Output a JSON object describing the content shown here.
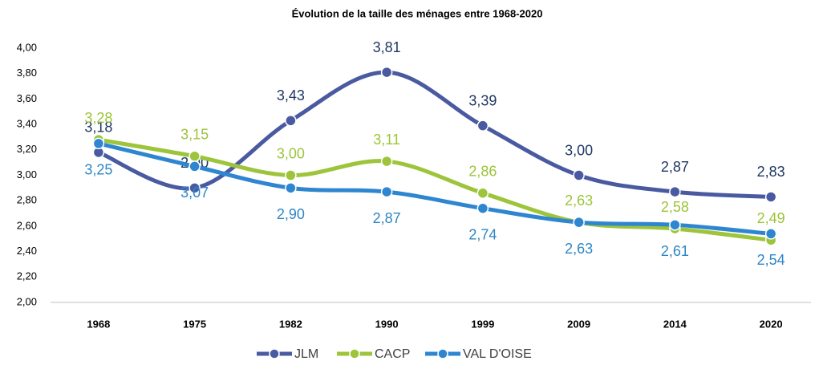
{
  "chart_data": {
    "type": "line",
    "title": "Évolution de la taille des ménages entre 1968-2020",
    "categories": [
      "1968",
      "1975",
      "1982",
      "1990",
      "1999",
      "2009",
      "2014",
      "2020"
    ],
    "series": [
      {
        "name": "JLM",
        "color": "#4a5aa0",
        "label_color": "#1f3864",
        "values": [
          3.18,
          2.9,
          3.43,
          3.81,
          3.39,
          3.0,
          2.87,
          2.83
        ],
        "value_labels": [
          "3,18",
          "2,90",
          "3,43",
          "3,81",
          "3,39",
          "3,00",
          "2,87",
          "2,83"
        ]
      },
      {
        "name": "CACP",
        "color": "#9dc43a",
        "label_color": "#9dc43a",
        "values": [
          3.28,
          3.15,
          3.0,
          3.11,
          2.86,
          2.63,
          2.58,
          2.49
        ],
        "value_labels": [
          "3,28",
          "3,15",
          "3,00",
          "3,11",
          "2,86",
          "2,63",
          "2,58",
          "2,49"
        ]
      },
      {
        "name": "VAL D'OISE",
        "color": "#2f86d0",
        "label_color": "#2f86c6",
        "values": [
          3.25,
          3.07,
          2.9,
          2.87,
          2.74,
          2.63,
          2.61,
          2.54
        ],
        "value_labels": [
          "3,25",
          "3,07",
          "2,90",
          "2,87",
          "2,74",
          "2,63",
          "2,61",
          "2,54"
        ]
      }
    ],
    "ylim": [
      2,
      4
    ],
    "yticks": [
      {
        "value": 2,
        "label": "2,00"
      },
      {
        "value": 2.2,
        "label": "2,20"
      },
      {
        "value": 2.4,
        "label": "2,40"
      },
      {
        "value": 2.6,
        "label": "2,60"
      },
      {
        "value": 2.8,
        "label": "2,80"
      },
      {
        "value": 3,
        "label": "3,00"
      },
      {
        "value": 3.2,
        "label": "3,20"
      },
      {
        "value": 3.4,
        "label": "3,40"
      },
      {
        "value": 3.6,
        "label": "3,60"
      },
      {
        "value": 3.8,
        "label": "3,80"
      },
      {
        "value": 4,
        "label": "4,00"
      }
    ],
    "grid": false,
    "legend": "bottom"
  }
}
